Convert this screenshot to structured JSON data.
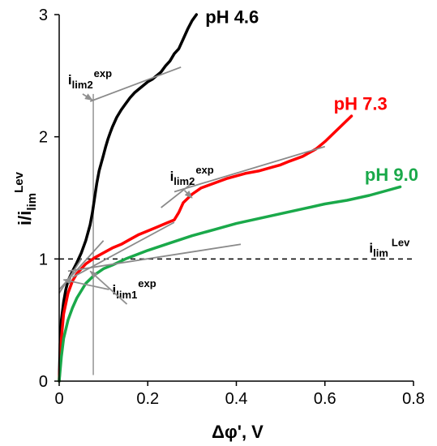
{
  "chart_data": {
    "type": "line",
    "xlabel": "Δφ', V",
    "ylabel": "i/i",
    "ylabel_sub": "lim",
    "ylabel_sup": "Lev",
    "xlim": [
      0,
      0.8
    ],
    "ylim": [
      0,
      3
    ],
    "x_ticks": [
      0,
      0.2,
      0.4,
      0.6,
      0.8
    ],
    "y_ticks": [
      0,
      1,
      2,
      3
    ],
    "x_tick_labels": [
      "0",
      "0.2",
      "0.4",
      "0.6",
      "0.8"
    ],
    "y_tick_labels": [
      "0",
      "1",
      "2",
      "3"
    ],
    "grid": false,
    "reference_line": {
      "y": 1,
      "label_main": "i",
      "label_sub": "lim",
      "label_sup": "Lev"
    },
    "series": [
      {
        "name": "pH 4.6",
        "color": "#000000",
        "x": [
          0.0,
          0.002,
          0.005,
          0.01,
          0.015,
          0.02,
          0.03,
          0.04,
          0.05,
          0.06,
          0.07,
          0.075,
          0.08,
          0.085,
          0.09,
          0.1,
          0.105,
          0.11,
          0.115,
          0.12,
          0.125,
          0.13,
          0.14,
          0.15,
          0.16,
          0.17,
          0.18,
          0.19,
          0.2,
          0.21,
          0.22,
          0.23,
          0.24,
          0.25,
          0.26,
          0.27,
          0.28,
          0.29,
          0.3,
          0.31
        ],
        "y": [
          0.0,
          0.3,
          0.5,
          0.65,
          0.75,
          0.82,
          0.9,
          0.97,
          1.05,
          1.15,
          1.28,
          1.38,
          1.5,
          1.62,
          1.72,
          1.85,
          1.92,
          1.98,
          2.03,
          2.08,
          2.12,
          2.16,
          2.22,
          2.27,
          2.32,
          2.36,
          2.39,
          2.42,
          2.45,
          2.47,
          2.5,
          2.53,
          2.58,
          2.62,
          2.68,
          2.72,
          2.8,
          2.88,
          2.95,
          3.0
        ]
      },
      {
        "name": "pH 7.3",
        "color": "#ff0000",
        "x": [
          0.0,
          0.005,
          0.01,
          0.02,
          0.03,
          0.04,
          0.05,
          0.06,
          0.08,
          0.1,
          0.12,
          0.14,
          0.16,
          0.18,
          0.2,
          0.22,
          0.24,
          0.26,
          0.27,
          0.28,
          0.3,
          0.32,
          0.35,
          0.38,
          0.4,
          0.42,
          0.45,
          0.48,
          0.5,
          0.52,
          0.55,
          0.58,
          0.6,
          0.62,
          0.64,
          0.66
        ],
        "y": [
          0.0,
          0.35,
          0.55,
          0.72,
          0.82,
          0.88,
          0.92,
          0.96,
          1.01,
          1.05,
          1.09,
          1.12,
          1.16,
          1.2,
          1.23,
          1.26,
          1.29,
          1.32,
          1.38,
          1.46,
          1.53,
          1.58,
          1.62,
          1.66,
          1.68,
          1.7,
          1.72,
          1.75,
          1.77,
          1.8,
          1.84,
          1.9,
          1.96,
          2.03,
          2.1,
          2.17
        ]
      },
      {
        "name": "pH 9.0",
        "color": "#1aa94a",
        "x": [
          0.0,
          0.005,
          0.01,
          0.02,
          0.03,
          0.04,
          0.05,
          0.06,
          0.08,
          0.1,
          0.12,
          0.15,
          0.2,
          0.25,
          0.3,
          0.35,
          0.4,
          0.45,
          0.5,
          0.55,
          0.6,
          0.65,
          0.7,
          0.74,
          0.77
        ],
        "y": [
          0.0,
          0.2,
          0.35,
          0.5,
          0.6,
          0.68,
          0.74,
          0.8,
          0.87,
          0.92,
          0.95,
          1.0,
          1.07,
          1.13,
          1.19,
          1.24,
          1.29,
          1.33,
          1.37,
          1.41,
          1.45,
          1.48,
          1.52,
          1.56,
          1.59
        ]
      }
    ],
    "series_labels": [
      {
        "text": "pH 4.6",
        "x": 0.33,
        "y": 2.93
      },
      {
        "text": "pH 7.3",
        "x": 0.62,
        "y": 2.22
      },
      {
        "text": "pH 9.0",
        "x": 0.69,
        "y": 1.64
      }
    ],
    "tangent_lines": [
      {
        "x": [
          0.07,
          0.275
        ],
        "y": [
          2.29,
          2.57
        ]
      },
      {
        "x": [
          0.0,
          0.1
        ],
        "y": [
          0.75,
          1.15
        ]
      },
      {
        "x": [
          0.03,
          0.26
        ],
        "y": [
          0.85,
          1.3
        ]
      },
      {
        "x": [
          0.26,
          0.6
        ],
        "y": [
          1.55,
          1.92
        ]
      },
      {
        "x": [
          0.02,
          0.41
        ],
        "y": [
          0.9,
          1.12
        ]
      },
      {
        "x": [
          0.0,
          0.05
        ],
        "y": [
          0.72,
          1.0
        ]
      },
      {
        "x": [
          0.23,
          0.3
        ],
        "y": [
          1.42,
          1.62
        ]
      }
    ],
    "vertical_marker": {
      "x": 0.077,
      "y_range": [
        0.05,
        2.35
      ]
    },
    "annotations": [
      {
        "main": "i",
        "sub": "lim2",
        "sup": "exp",
        "x": 0.02,
        "y": 2.43,
        "arrow_to": [
          0.075,
          2.3
        ]
      },
      {
        "main": "i",
        "sub": "lim2",
        "sup": "exp",
        "x": 0.25,
        "y": 1.64,
        "arrow_to": [
          0.3,
          1.5
        ]
      },
      {
        "main": "i",
        "sub": "lim1",
        "sup": "exp",
        "x": 0.12,
        "y": 0.71,
        "arrow_to": [
          0.07,
          0.9
        ]
      },
      {
        "main": "",
        "sub": "",
        "sup": "",
        "x": 0.0,
        "y": 0.0,
        "arrow_to": [
          0.01,
          0.83
        ]
      }
    ]
  }
}
